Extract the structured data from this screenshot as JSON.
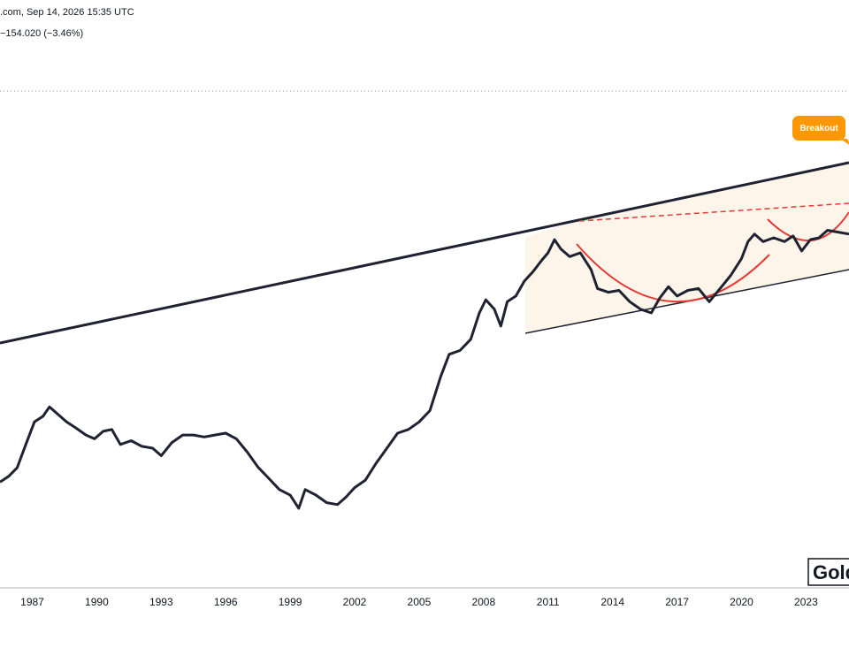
{
  "header": {
    "line1": ".com, Sep 14, 2026 15:35 UTC",
    "line2": "−154.020 (−3.46%)"
  },
  "annotations": {
    "breakout_label": "Breakout"
  },
  "watermark": "Gold",
  "colors": {
    "price_line": "#1f2230",
    "channel_line": "#1f2230",
    "cup_arc": "#e53935",
    "resistance_dashed": "#e53935",
    "channel_fill": "#fdf5ea",
    "badge": "#ff9800"
  },
  "chart_data": {
    "type": "line",
    "title": "",
    "xlabel": "",
    "ylabel": "",
    "x_tick_labels": [
      "1987",
      "1990",
      "1993",
      "1996",
      "1999",
      "2002",
      "2005",
      "2008",
      "2011",
      "2014",
      "2017",
      "2020",
      "2023"
    ],
    "xlim": [
      1985.5,
      2025.0
    ],
    "ylim": [
      0,
      100
    ],
    "y_axis_visible": false,
    "grid": false,
    "legend": "none",
    "series": [
      {
        "values": [
          {
            "x": 1985.5,
            "y": 27.0
          },
          {
            "x": 1985.9,
            "y": 28.5
          },
          {
            "x": 1986.3,
            "y": 30.8
          },
          {
            "x": 1986.7,
            "y": 37.0
          },
          {
            "x": 1987.1,
            "y": 43.0
          },
          {
            "x": 1987.5,
            "y": 44.5
          },
          {
            "x": 1987.8,
            "y": 47.0
          },
          {
            "x": 1988.2,
            "y": 45.0
          },
          {
            "x": 1988.6,
            "y": 43.0
          },
          {
            "x": 1989.0,
            "y": 41.5
          },
          {
            "x": 1989.5,
            "y": 39.5
          },
          {
            "x": 1989.9,
            "y": 38.5
          },
          {
            "x": 1990.3,
            "y": 40.5
          },
          {
            "x": 1990.7,
            "y": 41.0
          },
          {
            "x": 1991.1,
            "y": 37.0
          },
          {
            "x": 1991.6,
            "y": 38.0
          },
          {
            "x": 1992.1,
            "y": 36.5
          },
          {
            "x": 1992.6,
            "y": 36.0
          },
          {
            "x": 1993.0,
            "y": 34.0
          },
          {
            "x": 1993.5,
            "y": 37.5
          },
          {
            "x": 1994.0,
            "y": 39.5
          },
          {
            "x": 1994.5,
            "y": 39.5
          },
          {
            "x": 1995.0,
            "y": 39.0
          },
          {
            "x": 1995.5,
            "y": 39.5
          },
          {
            "x": 1996.0,
            "y": 40.0
          },
          {
            "x": 1996.5,
            "y": 38.5
          },
          {
            "x": 1997.0,
            "y": 35.0
          },
          {
            "x": 1997.5,
            "y": 31.0
          },
          {
            "x": 1998.0,
            "y": 28.0
          },
          {
            "x": 1998.5,
            "y": 25.0
          },
          {
            "x": 1999.0,
            "y": 23.5
          },
          {
            "x": 1999.4,
            "y": 20.0
          },
          {
            "x": 1999.7,
            "y": 25.0
          },
          {
            "x": 2000.2,
            "y": 23.5
          },
          {
            "x": 2000.7,
            "y": 21.5
          },
          {
            "x": 2001.2,
            "y": 21.0
          },
          {
            "x": 2001.6,
            "y": 23.0
          },
          {
            "x": 2002.0,
            "y": 25.5
          },
          {
            "x": 2002.5,
            "y": 27.5
          },
          {
            "x": 2003.0,
            "y": 32.0
          },
          {
            "x": 2003.5,
            "y": 36.0
          },
          {
            "x": 2004.0,
            "y": 40.0
          },
          {
            "x": 2004.5,
            "y": 41.0
          },
          {
            "x": 2005.0,
            "y": 43.0
          },
          {
            "x": 2005.5,
            "y": 46.0
          },
          {
            "x": 2006.0,
            "y": 55.0
          },
          {
            "x": 2006.4,
            "y": 61.0
          },
          {
            "x": 2006.9,
            "y": 62.0
          },
          {
            "x": 2007.4,
            "y": 65.0
          },
          {
            "x": 2007.8,
            "y": 72.0
          },
          {
            "x": 2008.1,
            "y": 75.5
          },
          {
            "x": 2008.5,
            "y": 73.0
          },
          {
            "x": 2008.8,
            "y": 68.5
          },
          {
            "x": 2009.1,
            "y": 75.0
          },
          {
            "x": 2009.5,
            "y": 76.5
          },
          {
            "x": 2009.9,
            "y": 80.5
          },
          {
            "x": 2010.3,
            "y": 83.0
          },
          {
            "x": 2010.7,
            "y": 86.0
          },
          {
            "x": 2011.0,
            "y": 88.0
          },
          {
            "x": 2011.3,
            "y": 91.5
          },
          {
            "x": 2011.6,
            "y": 89.0
          },
          {
            "x": 2012.0,
            "y": 87.0
          },
          {
            "x": 2012.5,
            "y": 88.0
          },
          {
            "x": 2013.0,
            "y": 83.5
          },
          {
            "x": 2013.3,
            "y": 78.5
          },
          {
            "x": 2013.8,
            "y": 77.5
          },
          {
            "x": 2014.3,
            "y": 78.0
          },
          {
            "x": 2014.8,
            "y": 75.0
          },
          {
            "x": 2015.3,
            "y": 73.0
          },
          {
            "x": 2015.8,
            "y": 72.0
          },
          {
            "x": 2016.2,
            "y": 76.0
          },
          {
            "x": 2016.6,
            "y": 79.0
          },
          {
            "x": 2017.0,
            "y": 76.5
          },
          {
            "x": 2017.5,
            "y": 78.0
          },
          {
            "x": 2018.0,
            "y": 78.5
          },
          {
            "x": 2018.5,
            "y": 75.0
          },
          {
            "x": 2019.0,
            "y": 78.5
          },
          {
            "x": 2019.5,
            "y": 82.0
          },
          {
            "x": 2020.0,
            "y": 86.5
          },
          {
            "x": 2020.3,
            "y": 91.0
          },
          {
            "x": 2020.6,
            "y": 93.0
          },
          {
            "x": 2021.0,
            "y": 91.0
          },
          {
            "x": 2021.5,
            "y": 92.0
          },
          {
            "x": 2022.0,
            "y": 91.0
          },
          {
            "x": 2022.4,
            "y": 92.5
          },
          {
            "x": 2022.8,
            "y": 88.5
          },
          {
            "x": 2023.2,
            "y": 91.5
          },
          {
            "x": 2023.6,
            "y": 92.0
          },
          {
            "x": 2024.0,
            "y": 94.0
          },
          {
            "x": 2024.5,
            "y": 93.5
          },
          {
            "x": 2025.0,
            "y": 93.0
          }
        ]
      }
    ]
  }
}
